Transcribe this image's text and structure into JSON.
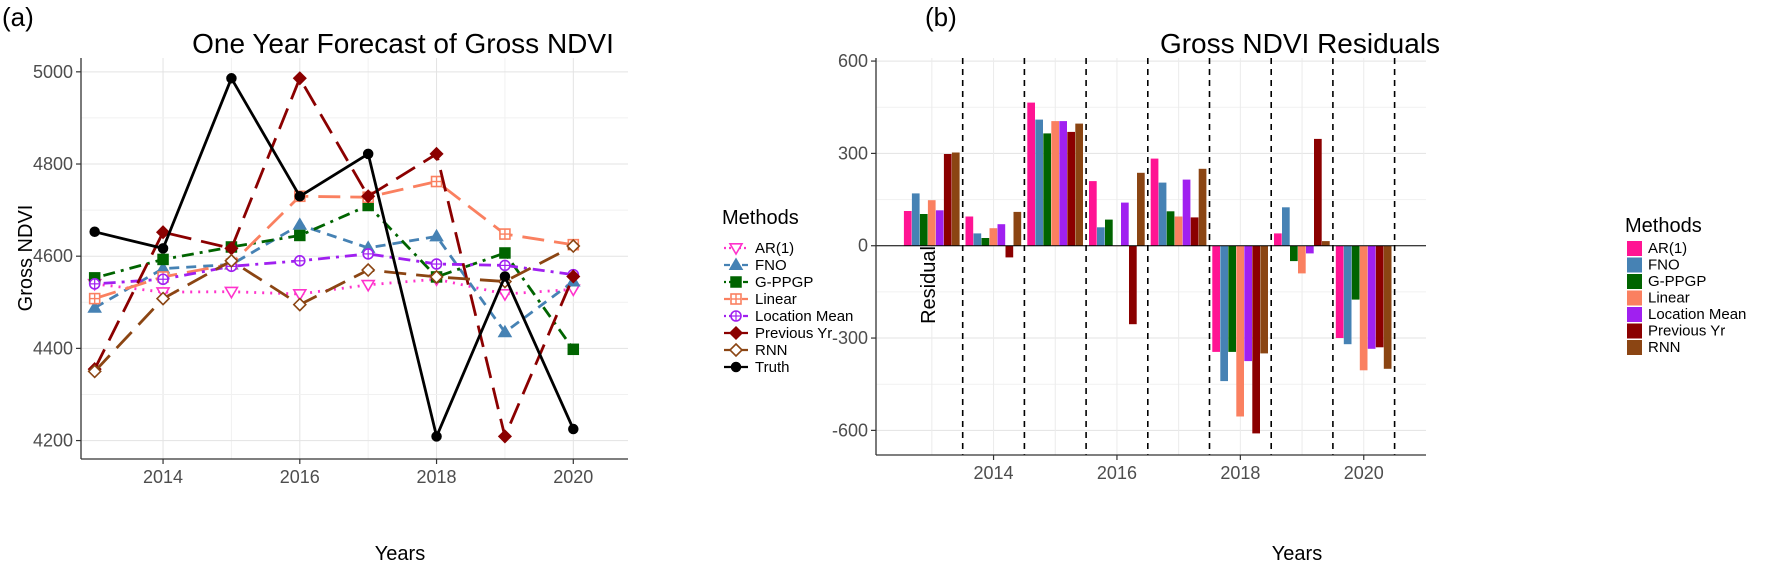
{
  "chart_data": [
    {
      "panel_label": "(a)",
      "type": "line",
      "title": "One Year Forecast of Gross NDVI",
      "xlabel": "Years",
      "ylabel": "Gross NDVI",
      "x": [
        2013,
        2014,
        2015,
        2016,
        2017,
        2018,
        2019,
        2020
      ],
      "xticks": [
        2014,
        2016,
        2018,
        2020
      ],
      "xlim": [
        2012.8,
        2020.8
      ],
      "yticks": [
        4200,
        4400,
        4600,
        4800,
        5000
      ],
      "ylim": [
        4160,
        5030
      ],
      "grid": true,
      "legend": {
        "title": "Methods",
        "placement": "right"
      },
      "series": [
        {
          "name": "AR(1)",
          "color": "#ff33cc",
          "marker": "triangle-down-open",
          "dash": "dotted",
          "values": [
            4540,
            4522,
            4523,
            4518,
            4538,
            4550,
            4518,
            4528
          ]
        },
        {
          "name": "FNO",
          "color": "#4682b4",
          "marker": "triangle",
          "dash": "dashed",
          "values": [
            4488,
            4573,
            4582,
            4668,
            4618,
            4643,
            4435,
            4545
          ]
        },
        {
          "name": "G-PPGP",
          "color": "#006400",
          "marker": "square",
          "dash": "dotdash",
          "values": [
            4553,
            4593,
            4620,
            4645,
            4710,
            4555,
            4607,
            4398
          ]
        },
        {
          "name": "Linear",
          "color": "#fa8060",
          "marker": "square-cross-open",
          "dash": "longdash",
          "values": [
            4508,
            4555,
            4583,
            4730,
            4728,
            4762,
            4648,
            4625
          ]
        },
        {
          "name": "Location Mean",
          "color": "#a020f0",
          "marker": "circle-plus-open",
          "dash": "dotdash",
          "values": [
            4540,
            4550,
            4578,
            4590,
            4605,
            4583,
            4580,
            4560
          ]
        },
        {
          "name": "Previous Yr",
          "color": "#8b0000",
          "marker": "diamond",
          "dash": "longdash",
          "values": [
            4355,
            4652,
            4617,
            4986,
            4730,
            4822,
            4209,
            4556
          ]
        },
        {
          "name": "RNN",
          "color": "#8b4513",
          "marker": "diamond-open",
          "dash": "longdash",
          "values": [
            4350,
            4508,
            4590,
            4495,
            4570,
            4555,
            4545,
            4622
          ]
        },
        {
          "name": "Truth",
          "color": "#000000",
          "marker": "circle",
          "dash": "solid",
          "values": [
            4653,
            4617,
            4986,
            4730,
            4822,
            4209,
            4556,
            4225
          ]
        }
      ]
    },
    {
      "panel_label": "(b)",
      "type": "bar",
      "title": "Gross NDVI Residuals",
      "xlabel": "Years",
      "ylabel": "Residual",
      "categories": [
        2013,
        2014,
        2015,
        2016,
        2017,
        2018,
        2019,
        2020
      ],
      "xticks": [
        2014,
        2016,
        2018,
        2020
      ],
      "yticks": [
        -600,
        -300,
        0,
        300,
        600
      ],
      "ylim": [
        -680,
        610
      ],
      "grid": true,
      "legend": {
        "title": "Methods",
        "placement": "right"
      },
      "series": [
        {
          "name": "AR(1)",
          "color": "#ff1493",
          "values": [
            113,
            95,
            465,
            210,
            283,
            -345,
            40,
            -300
          ]
        },
        {
          "name": "FNO",
          "color": "#4682b4",
          "values": [
            170,
            40,
            410,
            60,
            205,
            -440,
            125,
            -320
          ]
        },
        {
          "name": "G-PPGP",
          "color": "#006400",
          "values": [
            103,
            25,
            365,
            85,
            112,
            -345,
            -50,
            -175
          ]
        },
        {
          "name": "Linear",
          "color": "#fa8060",
          "values": [
            148,
            57,
            405,
            0,
            95,
            -555,
            -90,
            -405
          ]
        },
        {
          "name": "Location Mean",
          "color": "#a020f0",
          "values": [
            115,
            70,
            405,
            140,
            215,
            -375,
            -25,
            -335
          ]
        },
        {
          "name": "Previous Yr",
          "color": "#8b0000",
          "values": [
            298,
            -38,
            370,
            -255,
            92,
            -610,
            347,
            -330
          ]
        },
        {
          "name": "RNN",
          "color": "#8b4513",
          "values": [
            303,
            110,
            397,
            237,
            250,
            -350,
            15,
            -400
          ]
        }
      ]
    }
  ]
}
